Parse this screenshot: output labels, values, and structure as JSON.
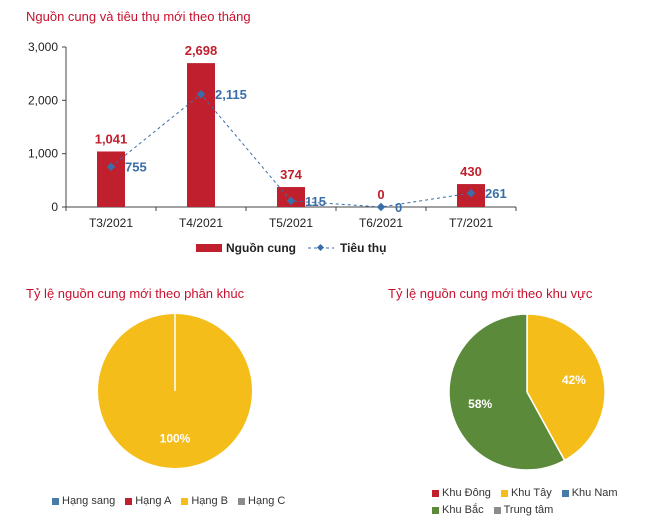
{
  "chart_data": [
    {
      "type": "bar",
      "title": "Nguồn cung và tiêu thụ mới theo tháng",
      "categories": [
        "T3/2021",
        "T4/2021",
        "T5/2021",
        "T6/2021",
        "T7/2021"
      ],
      "series": [
        {
          "name": "Nguồn cung",
          "type": "bar",
          "values": [
            1041,
            2698,
            374,
            0,
            430
          ],
          "labels": [
            "1,041",
            "2,698",
            "374",
            "0",
            "430"
          ],
          "color": "#c0202e"
        },
        {
          "name": "Tiêu thụ",
          "type": "line",
          "values": [
            755,
            2115,
            115,
            0,
            261
          ],
          "labels": [
            "755",
            "2,115",
            "115",
            "0",
            "261"
          ],
          "color": "#3a6ea8"
        }
      ],
      "ylim": [
        0,
        3000
      ],
      "yticks": [
        "0",
        "1,000",
        "2,000",
        "3,000"
      ],
      "legend": "bottom"
    },
    {
      "type": "pie",
      "title": "Tỷ lệ nguồn cung mới theo phân khúc",
      "slices": [
        {
          "name": "Hạng sang",
          "value": 0,
          "color": "#4a7aa6"
        },
        {
          "name": "Hạng A",
          "value": 0,
          "color": "#c0202e"
        },
        {
          "name": "Hạng B",
          "value": 100,
          "label": "100%",
          "color": "#f5bd1a"
        },
        {
          "name": "Hạng C",
          "value": 0,
          "color": "#8c8c8c"
        }
      ],
      "legend": "bottom"
    },
    {
      "type": "pie",
      "title": "Tỷ lệ nguồn cung mới theo khu vực",
      "slices": [
        {
          "name": "Khu Đông",
          "value": 0,
          "color": "#c0202e"
        },
        {
          "name": "Khu Tây",
          "value": 42,
          "label": "42%",
          "color": "#f5bd1a"
        },
        {
          "name": "Khu Nam",
          "value": 0,
          "color": "#4a7aa6"
        },
        {
          "name": "Khu Bắc",
          "value": 58,
          "label": "58%",
          "color": "#5a8a3a"
        },
        {
          "name": "Trung tâm",
          "value": 0,
          "color": "#8c8c8c"
        }
      ],
      "legend": "bottom"
    }
  ]
}
